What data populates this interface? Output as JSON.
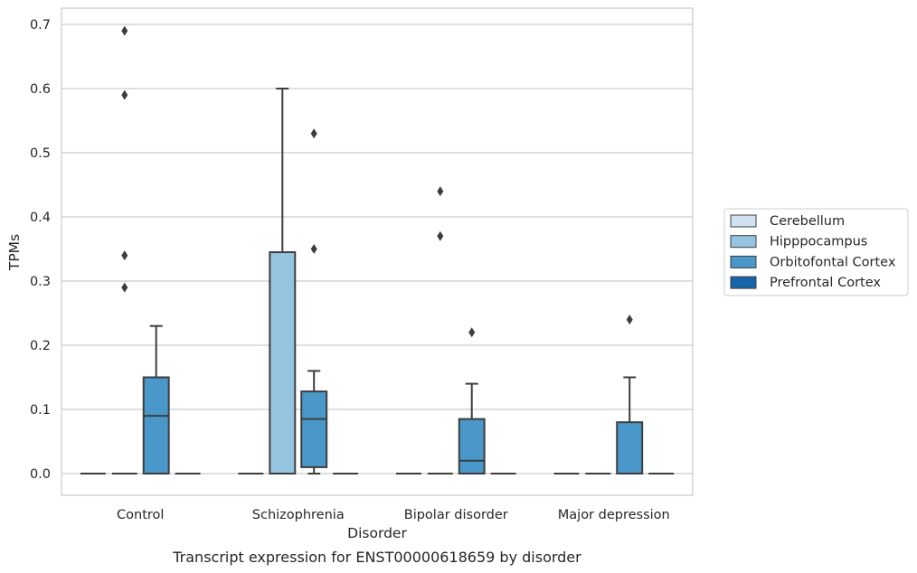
{
  "chart_data": {
    "type": "boxplot",
    "caption": "Transcript expression for ENST00000618659 by disorder",
    "xlabel": "Disorder",
    "ylabel": "TPMs",
    "ylim": [
      -0.035,
      0.725
    ],
    "yticks": [
      0.0,
      0.1,
      0.2,
      0.3,
      0.4,
      0.5,
      0.6,
      0.7
    ],
    "ytick_labels": [
      "0.0",
      "0.1",
      "0.2",
      "0.3",
      "0.4",
      "0.5",
      "0.6",
      "0.7"
    ],
    "grid": true,
    "legend_position": "right",
    "categories": [
      "Control",
      "Schizophrenia",
      "Bipolar disorder",
      "Major depression"
    ],
    "series": [
      {
        "name": "Cerebellum",
        "color": "#d0e1f2",
        "boxes": [
          {
            "q1": 0,
            "median": 0,
            "q3": 0,
            "whislo": 0,
            "whishi": 0,
            "fliers": []
          },
          {
            "q1": 0,
            "median": 0,
            "q3": 0,
            "whislo": 0,
            "whishi": 0,
            "fliers": []
          },
          {
            "q1": 0,
            "median": 0,
            "q3": 0,
            "whislo": 0,
            "whishi": 0,
            "fliers": []
          },
          {
            "q1": 0,
            "median": 0,
            "q3": 0,
            "whislo": 0,
            "whishi": 0,
            "fliers": []
          }
        ]
      },
      {
        "name": "Hipppocampus",
        "color": "#94c4df",
        "boxes": [
          {
            "q1": 0,
            "median": 0,
            "q3": 0,
            "whislo": 0,
            "whishi": 0,
            "fliers": [
              0.29,
              0.34,
              0.59,
              0.69
            ]
          },
          {
            "q1": 0,
            "median": 0,
            "q3": 0.345,
            "whislo": 0,
            "whishi": 0.6,
            "fliers": []
          },
          {
            "q1": 0,
            "median": 0,
            "q3": 0,
            "whislo": 0,
            "whishi": 0,
            "fliers": [
              0.37,
              0.44
            ]
          },
          {
            "q1": 0,
            "median": 0,
            "q3": 0,
            "whislo": 0,
            "whishi": 0,
            "fliers": []
          }
        ]
      },
      {
        "name": "Orbitofontal Cortex",
        "color": "#4a98c9",
        "boxes": [
          {
            "q1": 0,
            "median": 0.09,
            "q3": 0.15,
            "whislo": 0,
            "whishi": 0.23,
            "fliers": []
          },
          {
            "q1": 0.01,
            "median": 0.085,
            "q3": 0.128,
            "whislo": 0,
            "whishi": 0.16,
            "fliers": [
              0.35,
              0.53
            ]
          },
          {
            "q1": 0,
            "median": 0.02,
            "q3": 0.085,
            "whislo": 0,
            "whishi": 0.14,
            "fliers": [
              0.22
            ]
          },
          {
            "q1": 0,
            "median": 0,
            "q3": 0.08,
            "whislo": 0,
            "whishi": 0.15,
            "fliers": [
              0.24
            ]
          }
        ]
      },
      {
        "name": "Prefrontal Cortex",
        "color": "#1764ab",
        "boxes": [
          {
            "q1": 0,
            "median": 0,
            "q3": 0,
            "whislo": 0,
            "whishi": 0,
            "fliers": []
          },
          {
            "q1": 0,
            "median": 0,
            "q3": 0,
            "whislo": 0,
            "whishi": 0,
            "fliers": []
          },
          {
            "q1": 0,
            "median": 0,
            "q3": 0,
            "whislo": 0,
            "whishi": 0,
            "fliers": []
          },
          {
            "q1": 0,
            "median": 0,
            "q3": 0,
            "whislo": 0,
            "whishi": 0,
            "fliers": []
          }
        ]
      }
    ]
  }
}
